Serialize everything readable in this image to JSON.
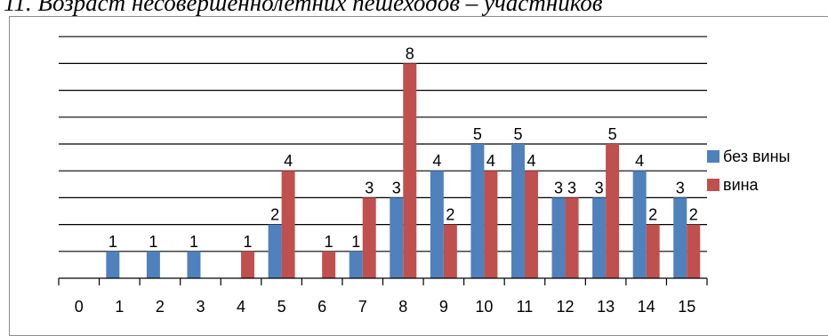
{
  "caption": "11. Возраст несовершеннолетних пешеходов – участников",
  "chart_data": {
    "type": "bar",
    "categories": [
      "0",
      "1",
      "2",
      "3",
      "4",
      "5",
      "6",
      "7",
      "8",
      "9",
      "10",
      "11",
      "12",
      "13",
      "14",
      "15"
    ],
    "series": [
      {
        "name": "без вины",
        "color": "#4f81bd",
        "values": [
          0,
          1,
          1,
          1,
          0,
          2,
          0,
          1,
          3,
          4,
          5,
          5,
          3,
          3,
          4,
          3
        ]
      },
      {
        "name": "вина",
        "color": "#c0504d",
        "values": [
          0,
          0,
          0,
          0,
          1,
          4,
          1,
          3,
          8,
          2,
          4,
          4,
          3,
          5,
          2,
          2
        ]
      }
    ],
    "ylim": [
      0,
      9
    ],
    "grid": true,
    "legend": "right"
  }
}
